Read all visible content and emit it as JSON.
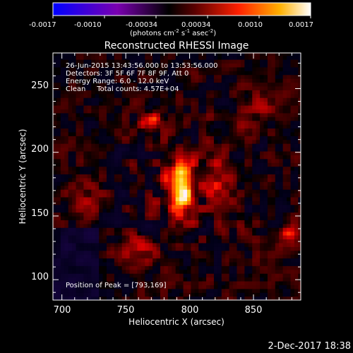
{
  "colorbar": {
    "ticks": [
      "-0.0017",
      "-0.0010",
      "-0.00034",
      "0.00034",
      "0.0010",
      "0.0017"
    ],
    "unit_parts": [
      "(photons cm",
      "-2",
      " s",
      "-1",
      " asec",
      "-2",
      ")"
    ]
  },
  "chart_data": {
    "type": "heatmap",
    "title": "Reconstructed RHESSI Image",
    "xlabel": "Heliocentric X (arcsec)",
    "ylabel": "Heliocentric Y (arcsec)",
    "xlim": [
      693,
      887
    ],
    "ylim": [
      84,
      278
    ],
    "xticks": [
      700,
      750,
      800,
      850
    ],
    "yticks": [
      100,
      150,
      200,
      250
    ],
    "clim": [
      -0.0017,
      0.0017
    ],
    "colormap": "hot",
    "peak": [
      793,
      169
    ],
    "annotations": [
      "26-Jun-2015 13:43:56.000 to 13:53:56.000",
      "Detectors: 3F 5F 6F 7F 8F 9F, Att 0",
      "Energy Range: 6.0 - 12.0 keV",
      "Clean     Total counts: 4.57E+04"
    ],
    "peak_label": "Position of Peak = [793,169]",
    "sources": [
      {
        "x": 793,
        "y": 172,
        "sx": 7,
        "sy": 14,
        "amp": 0.0017
      },
      {
        "x": 770,
        "y": 224,
        "sx": 5,
        "sy": 5,
        "amp": 0.001
      },
      {
        "x": 820,
        "y": 180,
        "sx": 10,
        "sy": 12,
        "amp": 0.00045
      },
      {
        "x": 840,
        "y": 220,
        "sx": 8,
        "sy": 8,
        "amp": 0.0004
      },
      {
        "x": 760,
        "y": 120,
        "sx": 12,
        "sy": 8,
        "amp": 0.00045
      },
      {
        "x": 877,
        "y": 135,
        "sx": 5,
        "sy": 5,
        "amp": 0.0008
      },
      {
        "x": 860,
        "y": 240,
        "sx": 10,
        "sy": 10,
        "amp": 0.0003
      },
      {
        "x": 715,
        "y": 165,
        "sx": 10,
        "sy": 14,
        "amp": 0.0003
      }
    ]
  },
  "footer_date": "2-Dec-2017 18:38"
}
